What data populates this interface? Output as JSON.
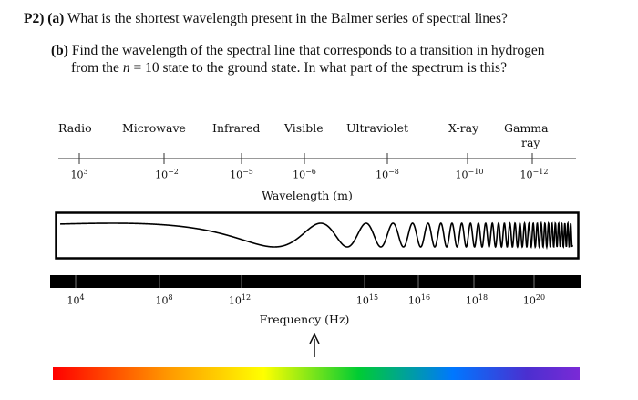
{
  "problem": {
    "part_a": {
      "prefix": "P2) (a)",
      "text": " What is the shortest wavelength present in the Balmer series of spectral lines?"
    },
    "part_b": {
      "prefix": "(b)",
      "text1": " Find the wavelength of the spectral line that corresponds to a transition in hydrogen",
      "text2a": "from the ",
      "n_var": "n",
      "text2b": " = 10 state to the ground state. In what part of the spectrum is this?"
    }
  },
  "spectrum": {
    "regions": [
      "Radio",
      "Microwave",
      "Infrared",
      "Visible",
      "Ultraviolet",
      "X-ray",
      "Gamma",
      "ray"
    ],
    "wavelength": {
      "title": "Wavelength (m)",
      "ticks": [
        {
          "base": "10",
          "exp": "3"
        },
        {
          "base": "10",
          "exp": "−2"
        },
        {
          "base": "10",
          "exp": "−5"
        },
        {
          "base": "10",
          "exp": "−6"
        },
        {
          "base": "10",
          "exp": "−8"
        },
        {
          "base": "10",
          "exp": "−10"
        },
        {
          "base": "10",
          "exp": "−12"
        }
      ]
    },
    "frequency": {
      "title": "Frequency (Hz)",
      "ticks": [
        {
          "base": "10",
          "exp": "4"
        },
        {
          "base": "10",
          "exp": "8"
        },
        {
          "base": "10",
          "exp": "12"
        },
        {
          "base": "10",
          "exp": "15"
        },
        {
          "base": "10",
          "exp": "16"
        },
        {
          "base": "10",
          "exp": "18"
        },
        {
          "base": "10",
          "exp": "20"
        }
      ]
    },
    "colors": {
      "bar": "#000000",
      "visible_gradient": [
        "#ff0000",
        "#ff9900",
        "#ffff00",
        "#00cc33",
        "#0077ff",
        "#4b2fd0",
        "#7a2ad6"
      ]
    }
  }
}
